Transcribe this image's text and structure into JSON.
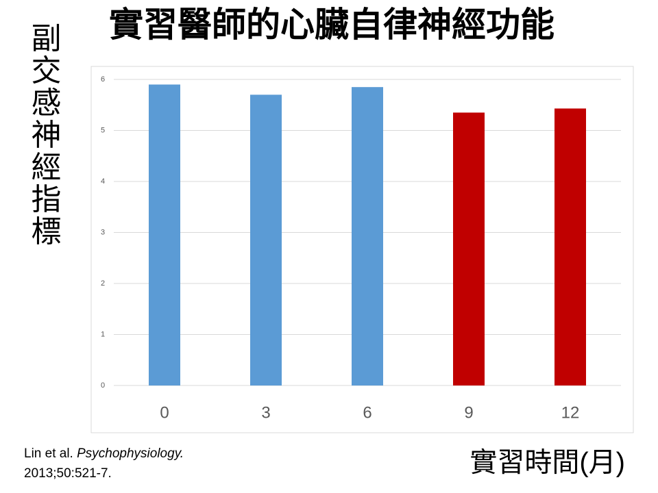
{
  "chart_data": {
    "type": "bar",
    "title": "實習醫師的心臟自律神經功能",
    "y_label": "副交感神經指標",
    "x_label": "實習時間(月)",
    "categories": [
      "0",
      "3",
      "6",
      "9",
      "12"
    ],
    "values": [
      5.9,
      5.7,
      5.85,
      5.35,
      5.43
    ],
    "colors": [
      "#5b9bd5",
      "#5b9bd5",
      "#5b9bd5",
      "#c00000",
      "#c00000"
    ],
    "ylim": [
      0,
      6
    ],
    "yticks": [
      0,
      1,
      2,
      3,
      4,
      5,
      6
    ],
    "grid": true
  },
  "citation": {
    "authors": "Lin et al.",
    "journal": "Psychophysiology.",
    "details": "2013;50:521-7."
  }
}
